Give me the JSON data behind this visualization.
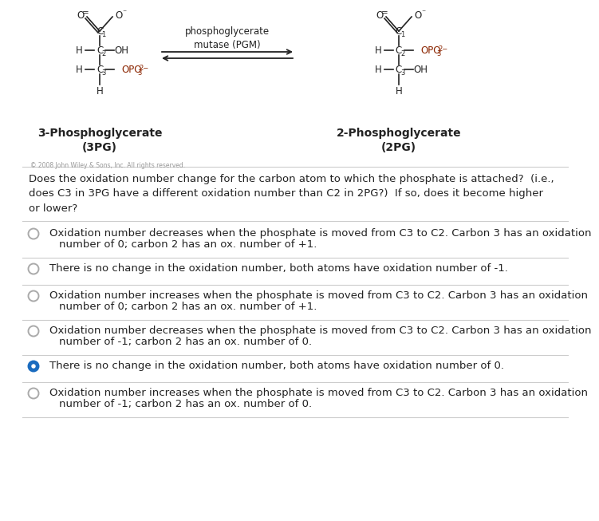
{
  "bg_color": "#ffffff",
  "body_fontsize": 9.5,
  "small_fontsize": 6,
  "question_text": "Does the oxidation number change for the carbon atom to which the phosphate is attached?  (i.e.,\ndoes C3 in 3PG have a different oxidation number than C2 in 2PG?)  If so, does it become higher\nor lower?",
  "copyright_text": "© 2008 John Wiley & Sons, Inc. All rights reserved.",
  "choices": [
    {
      "selected": false,
      "line1": "Oxidation number decreases when the phosphate is moved from C3 to C2. Carbon 3 has an oxidation",
      "line2": "number of 0; carbon 2 has an ox. number of +1."
    },
    {
      "selected": false,
      "line1": "There is no change in the oxidation number, both atoms have oxidation number of -1.",
      "line2": null
    },
    {
      "selected": false,
      "line1": "Oxidation number increases when the phosphate is moved from C3 to C2. Carbon 3 has an oxidation",
      "line2": "number of 0; carbon 2 has an ox. number of +1."
    },
    {
      "selected": false,
      "line1": "Oxidation number decreases when the phosphate is moved from C3 to C2. Carbon 3 has an oxidation",
      "line2": "number of -1; carbon 2 has an ox. number of 0."
    },
    {
      "selected": true,
      "line1": "There is no change in the oxidation number, both atoms have oxidation number of 0.",
      "line2": null
    },
    {
      "selected": false,
      "line1": "Oxidation number increases when the phosphate is moved from C3 to C2. Carbon 3 has an oxidation",
      "line2": "number of -1; carbon 2 has an ox. number of 0."
    }
  ],
  "molecule_left_label": "3-Phosphoglycerate\n(3PG)",
  "molecule_right_label": "2-Phosphoglycerate\n(2PG)",
  "enzyme_label": "phosphoglycerate\nmutase (PGM)",
  "opo3_color": "#8B2500",
  "black_color": "#222222",
  "radio_selected_color": "#1a6bbf",
  "radio_unselected_color": "#aaaaaa",
  "line_color": "#cccccc",
  "text_color": "#222222",
  "mol_fs": 8.5,
  "mol_sub_fs": 6,
  "enzyme_fs": 8.5,
  "label_fs": 10
}
